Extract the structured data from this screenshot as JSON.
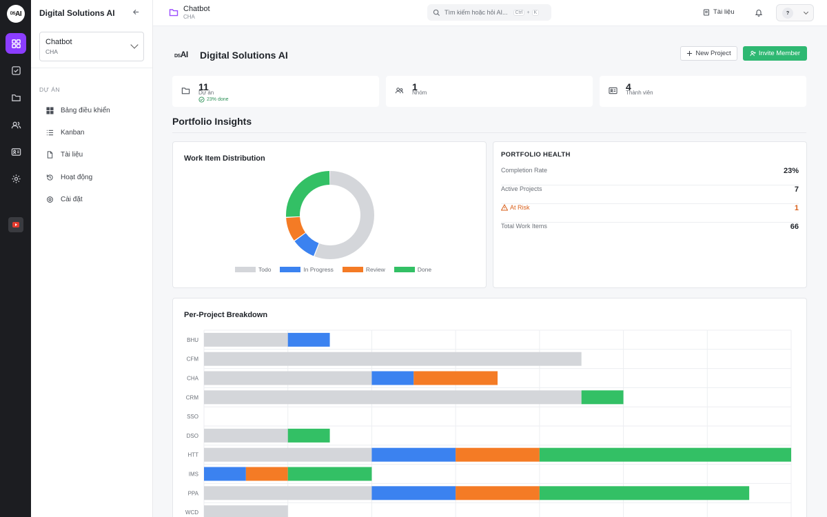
{
  "rail": {
    "logo": "DS AI",
    "items": [
      "dashboard-icon",
      "tasks-icon",
      "folder-icon",
      "users-icon",
      "contact-card-icon",
      "gear-icon"
    ]
  },
  "sidebar": {
    "title": "Digital Solutions AI",
    "project_select": {
      "name": "Chatbot",
      "code": "CHA"
    },
    "section": "DỰ ÁN",
    "items": [
      {
        "label": "Bảng điều khiển",
        "icon": "grid-icon"
      },
      {
        "label": "Kanban",
        "icon": "list-icon"
      },
      {
        "label": "Tài liệu",
        "icon": "document-icon"
      },
      {
        "label": "Hoạt động",
        "icon": "history-icon"
      },
      {
        "label": "Cài đặt",
        "icon": "gear-icon"
      }
    ]
  },
  "topbar": {
    "title": "Chatbot",
    "subtitle": "CHA",
    "search_placeholder": "Tìm kiếm hoặc hỏi AI...",
    "shortcut_ctrl": "Ctrl",
    "shortcut_plus": "+",
    "shortcut_key": "K",
    "docs_label": "Tài liệu",
    "avatar": "?"
  },
  "header": {
    "logo": "DS AI",
    "name": "Digital Solutions AI",
    "new_project": "New Project",
    "invite_member": "Invite Member"
  },
  "stats": [
    {
      "value": "11",
      "label": "Dự án",
      "extra": "23% done"
    },
    {
      "value": "1",
      "label": "Nhóm"
    },
    {
      "value": "4",
      "label": "Thành viên"
    }
  ],
  "section_title": "Portfolio Insights",
  "distribution": {
    "title": "Work Item Distribution",
    "legend": [
      "Todo",
      "In Progress",
      "Review",
      "Done"
    ]
  },
  "health": {
    "title": "PORTFOLIO HEALTH",
    "rows": [
      {
        "label": "Completion Rate",
        "value": "23%"
      },
      {
        "label": "Active Projects",
        "value": "7"
      },
      {
        "label": "At Risk",
        "value": "1"
      },
      {
        "label": "Total Work Items",
        "value": "66"
      }
    ]
  },
  "breakdown": {
    "title": "Per-Project Breakdown"
  },
  "colors": {
    "todo": "#d4d6da",
    "in_progress": "#3b82f0",
    "review": "#f47b25",
    "done": "#33c065",
    "accent": "#8b3dff",
    "invite": "#2eb872"
  },
  "chart_data": [
    {
      "type": "pie",
      "title": "Work Item Distribution",
      "categories": [
        "Todo",
        "In Progress",
        "Review",
        "Done"
      ],
      "values": [
        37,
        6,
        6,
        17
      ]
    },
    {
      "type": "bar",
      "orientation": "horizontal",
      "stacked": true,
      "title": "Per-Project Breakdown",
      "categories": [
        "BHU",
        "CFM",
        "CHA",
        "CRM",
        "SSO",
        "DSO",
        "HTT",
        "IMS",
        "PPA",
        "WCD"
      ],
      "series": [
        {
          "name": "Todo",
          "values": [
            2,
            9,
            4,
            9,
            0,
            2,
            4,
            0,
            4,
            2
          ]
        },
        {
          "name": "In Progress",
          "values": [
            1,
            0,
            1,
            0,
            0,
            0,
            2,
            1,
            2,
            0
          ]
        },
        {
          "name": "Review",
          "values": [
            0,
            0,
            2,
            0,
            0,
            0,
            2,
            1,
            2,
            0
          ]
        },
        {
          "name": "Done",
          "values": [
            0,
            0,
            0,
            1,
            0,
            1,
            6,
            2,
            5,
            0
          ]
        }
      ],
      "xlim": [
        0,
        14
      ],
      "grid": true
    }
  ]
}
